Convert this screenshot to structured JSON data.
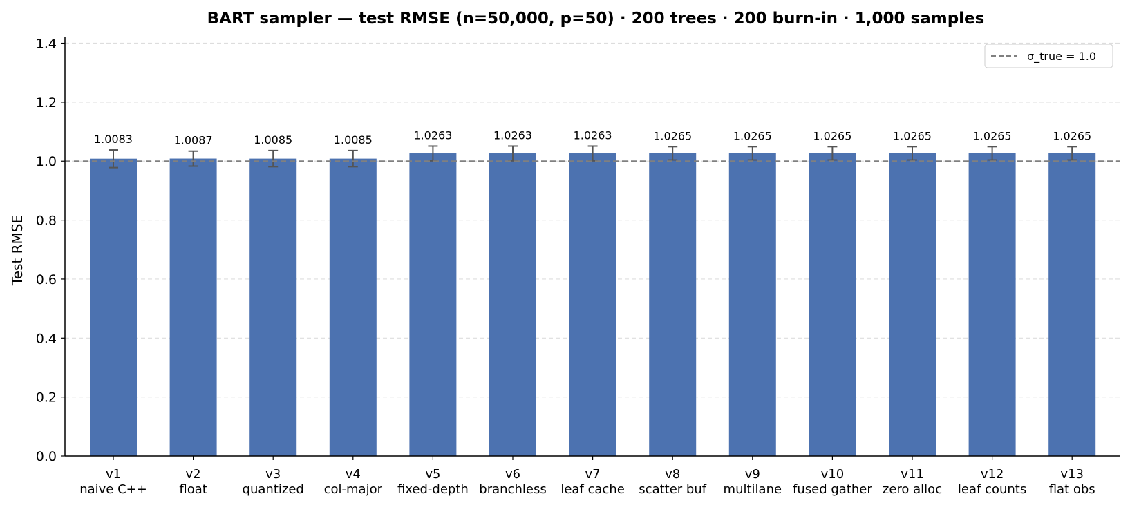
{
  "chart_data": {
    "type": "bar",
    "title": "BART sampler — test RMSE  (n=50,000, p=50)  ·  200 trees · 200 burn-in · 1,000 samples",
    "xlabel": "",
    "ylabel": "Test RMSE",
    "ylim": [
      0.0,
      1.42
    ],
    "yticks": [
      "0.0",
      "0.2",
      "0.4",
      "0.6",
      "0.8",
      "1.0",
      "1.2",
      "1.4"
    ],
    "grid": "y dashed",
    "categories": [
      [
        "v1",
        "naive C++"
      ],
      [
        "v2",
        "float"
      ],
      [
        "v3",
        "quantized"
      ],
      [
        "v4",
        "col-major"
      ],
      [
        "v5",
        "fixed-depth"
      ],
      [
        "v6",
        "branchless"
      ],
      [
        "v7",
        "leaf cache"
      ],
      [
        "v8",
        "scatter buf"
      ],
      [
        "v9",
        "multilane"
      ],
      [
        "v10",
        "fused gather"
      ],
      [
        "v11",
        "zero alloc"
      ],
      [
        "v12",
        "leaf counts"
      ],
      [
        "v13",
        "flat obs"
      ]
    ],
    "values": [
      1.0083,
      1.0087,
      1.0085,
      1.0085,
      1.0263,
      1.0263,
      1.0263,
      1.0265,
      1.0265,
      1.0265,
      1.0265,
      1.0265,
      1.0265
    ],
    "value_labels": [
      "1.0083",
      "1.0087",
      "1.0085",
      "1.0085",
      "1.0263",
      "1.0263",
      "1.0263",
      "1.0265",
      "1.0265",
      "1.0265",
      "1.0265",
      "1.0265",
      "1.0265"
    ],
    "error_low": [
      0.978,
      0.983,
      0.981,
      0.981,
      1.001,
      1.001,
      1.001,
      1.004,
      1.004,
      1.004,
      1.004,
      1.004,
      1.004
    ],
    "error_high": [
      1.038,
      1.034,
      1.036,
      1.036,
      1.051,
      1.051,
      1.051,
      1.049,
      1.049,
      1.049,
      1.049,
      1.049,
      1.049
    ],
    "reference_line": {
      "value": 1.0,
      "label": "σ_true = 1.0",
      "style": "dashed"
    },
    "legend": {
      "position": "top-right",
      "entries": [
        "σ_true = 1.0"
      ]
    },
    "colors": {
      "bar": "#4c72b0",
      "error": "#555555",
      "reference": "#808080",
      "grid": "#dddddd"
    }
  }
}
